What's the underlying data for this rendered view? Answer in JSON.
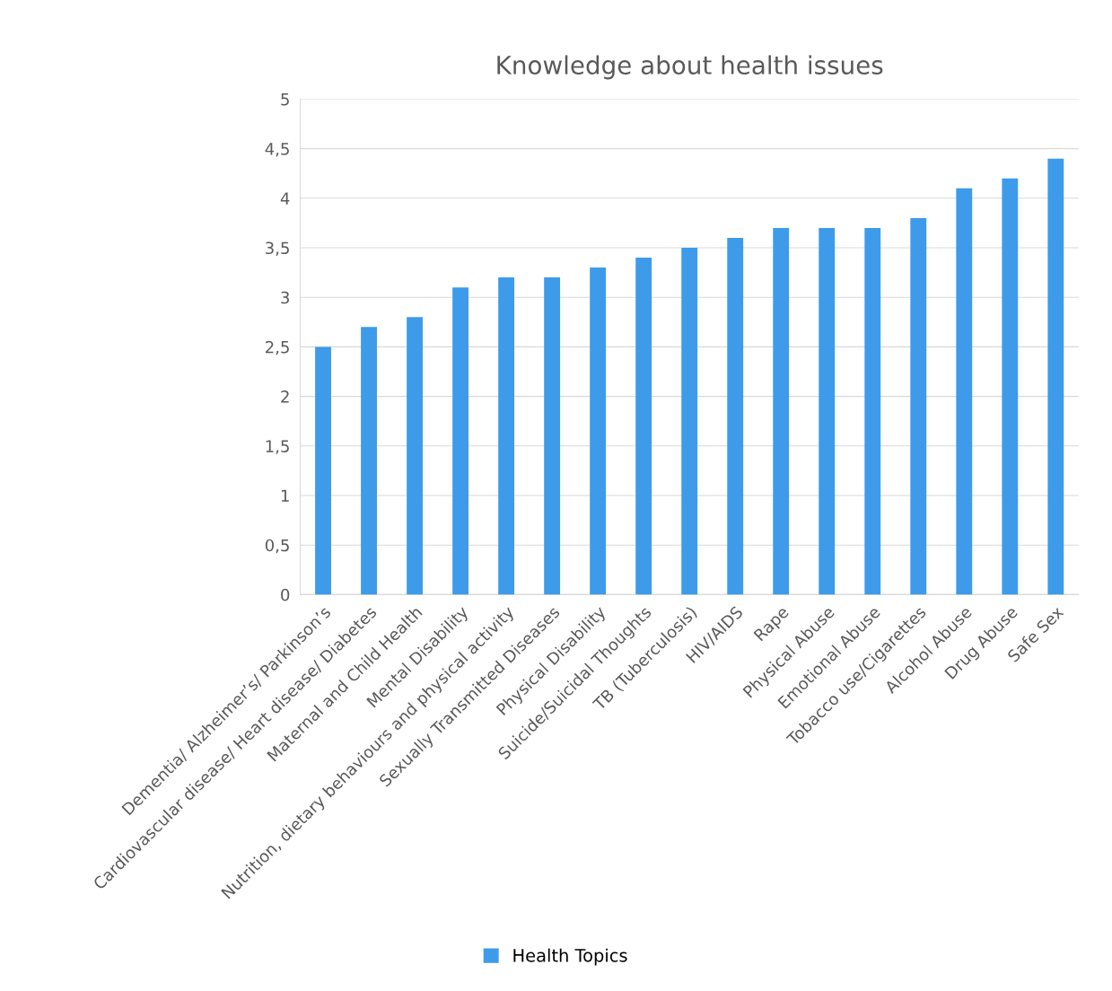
{
  "chart_data": {
    "type": "bar",
    "title": "Knowledge about health issues",
    "categories": [
      "Dementia/ Alzheimer’s/ Parkinson’s",
      "Cardiovascular disease/ Heart disease/ Diabetes",
      "Maternal and Child Health",
      "Mental Disability",
      "Nutrition, dietary behaviours and physical activity",
      "Sexually Transmitted Diseases",
      "Physical Disability",
      "Suicide/Suicidal Thoughts",
      "TB (Tuberculosis)",
      "HIV/AIDS",
      "Rape",
      "Physical Abuse",
      "Emotional Abuse",
      "Tobacco use/Cigarettes",
      "Alcohol Abuse",
      "Drug Abuse",
      "Safe Sex"
    ],
    "series": [
      {
        "name": "Health Topics",
        "color": "#3d9bea",
        "values": [
          2.5,
          2.7,
          2.8,
          3.1,
          3.2,
          3.2,
          3.3,
          3.4,
          3.5,
          3.6,
          3.7,
          3.7,
          3.7,
          3.8,
          4.1,
          4.2,
          4.4
        ]
      }
    ],
    "ylim": [
      0,
      5
    ],
    "yticks": [
      0,
      {
        "value": 0.5,
        "label": "0,5"
      },
      1,
      {
        "value": 1.5,
        "label": "1,5"
      },
      2,
      {
        "value": 2.5,
        "label": "2,5"
      },
      3,
      {
        "value": 3.5,
        "label": "3,5"
      },
      4,
      {
        "value": 4.5,
        "label": "4,5"
      },
      5
    ],
    "grid": "y",
    "legend": "bottom"
  }
}
